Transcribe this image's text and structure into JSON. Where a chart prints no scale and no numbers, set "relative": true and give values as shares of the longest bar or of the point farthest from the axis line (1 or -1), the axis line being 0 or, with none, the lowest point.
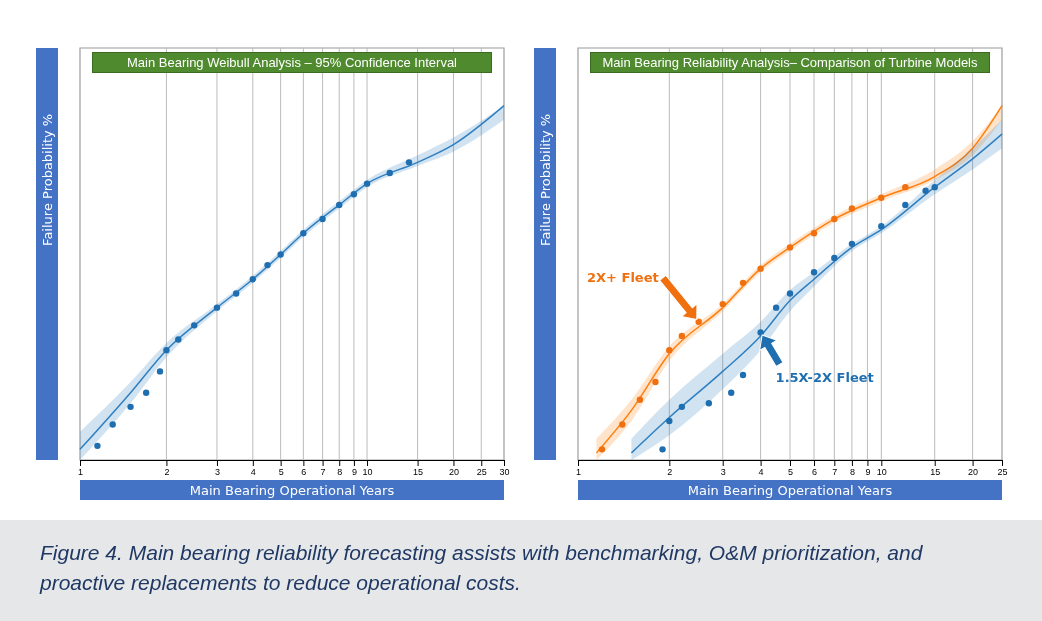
{
  "chart_data": [
    {
      "type": "line",
      "title": "Main Bearing Weibull Analysis – 95% Confidence Interval",
      "xlabel": "Main Bearing Operational Years",
      "ylabel": "Failure Probability %",
      "log": "x",
      "relative": true,
      "grid": "x",
      "tick_labels": "x",
      "legend": false,
      "xlim": [
        1,
        30
      ],
      "xticks": [
        1,
        2,
        3,
        4,
        5,
        6,
        7,
        8,
        9,
        10,
        15,
        20,
        25,
        30
      ],
      "annotations": [
        "Figure 4. Main bearing reliability forecasting assists with benchmarking, O&M prioritization, and proactive replacements to reduce operational costs."
      ],
      "series": [
        {
          "color": "#2f7fc0",
          "x": [
            1,
            1.5,
            2,
            3,
            4,
            5,
            6,
            8,
            10,
            15,
            20,
            30
          ],
          "values": [
            0.03,
            0.19,
            0.31,
            0.43,
            0.51,
            0.58,
            0.64,
            0.72,
            0.78,
            0.84,
            0.89,
            1.0
          ],
          "lower": [
            0,
            0.16,
            0.29,
            0.42,
            0.5,
            0.57,
            0.63,
            0.71,
            0.77,
            0.83,
            0.87,
            0.96
          ],
          "upper": [
            0.08,
            0.22,
            0.33,
            0.44,
            0.52,
            0.59,
            0.65,
            0.73,
            0.79,
            0.86,
            0.91,
            1.0
          ]
        },
        {
          "type": "scatter",
          "color": "#1f6fb0",
          "marker": "circle",
          "x": [
            1.15,
            1.3,
            1.5,
            1.7,
            1.9,
            2,
            2.2,
            2.5,
            3,
            3.5,
            4,
            4.5,
            5,
            6,
            7,
            8,
            9,
            10,
            12,
            14
          ],
          "values": [
            0.04,
            0.1,
            0.15,
            0.19,
            0.25,
            0.31,
            0.34,
            0.38,
            0.43,
            0.47,
            0.51,
            0.55,
            0.58,
            0.64,
            0.68,
            0.72,
            0.75,
            0.78,
            0.81,
            0.84
          ]
        }
      ]
    },
    {
      "type": "line",
      "title": "Main Bearing Reliability Analysis– Comparison of Turbine Models",
      "xlabel": "Main Bearing Operational Years",
      "ylabel": "Failure Probability %",
      "log": "x",
      "relative": true,
      "grid": "x",
      "tick_labels": "x",
      "legend": false,
      "xlim": [
        1,
        25
      ],
      "xticks": [
        1,
        2,
        3,
        4,
        5,
        6,
        7,
        8,
        9,
        10,
        15,
        20,
        25
      ],
      "series": [
        {
          "color": "#ff7f0e",
          "x": [
            1.15,
            1.5,
            2,
            3,
            4,
            5,
            7,
            10,
            15,
            20,
            25
          ],
          "values": [
            0.02,
            0.14,
            0.3,
            0.43,
            0.54,
            0.6,
            0.68,
            0.74,
            0.8,
            0.88,
            1.0
          ],
          "lower": [
            0,
            0.11,
            0.28,
            0.42,
            0.53,
            0.59,
            0.67,
            0.73,
            0.79,
            0.86,
            0.96
          ],
          "upper": [
            0.06,
            0.17,
            0.32,
            0.44,
            0.55,
            0.61,
            0.69,
            0.75,
            0.82,
            0.9,
            1.0
          ]
        },
        {
          "type": "scatter",
          "name": "2X+ Fleet",
          "color": "#f07010",
          "marker": "circle",
          "x": [
            1.2,
            1.4,
            1.6,
            1.8,
            2,
            2.2,
            2.5,
            3,
            3.5,
            4,
            5,
            6,
            7,
            8,
            10,
            12
          ],
          "values": [
            0.03,
            0.1,
            0.17,
            0.22,
            0.31,
            0.35,
            0.39,
            0.44,
            0.5,
            0.54,
            0.6,
            0.64,
            0.68,
            0.71,
            0.74,
            0.77
          ]
        },
        {
          "color": "#2f7fc0",
          "x": [
            1.5,
            2,
            3,
            4,
            5,
            6,
            8,
            10,
            15,
            20,
            25
          ],
          "values": [
            0.02,
            0.12,
            0.25,
            0.35,
            0.45,
            0.51,
            0.6,
            0.65,
            0.77,
            0.85,
            0.92
          ],
          "lower": [
            0,
            0.07,
            0.2,
            0.31,
            0.42,
            0.49,
            0.59,
            0.64,
            0.75,
            0.82,
            0.88
          ],
          "upper": [
            0.06,
            0.17,
            0.3,
            0.39,
            0.48,
            0.53,
            0.61,
            0.66,
            0.79,
            0.88,
            0.96
          ]
        },
        {
          "type": "scatter",
          "name": "1.5X-2X Fleet",
          "color": "#1f6fb0",
          "marker": "circle",
          "x": [
            1.9,
            2,
            2.2,
            2.7,
            3.2,
            3.5,
            4,
            4.5,
            5,
            6,
            7,
            8,
            10,
            12,
            14,
            15
          ],
          "values": [
            0.03,
            0.11,
            0.15,
            0.16,
            0.19,
            0.24,
            0.36,
            0.43,
            0.47,
            0.53,
            0.57,
            0.61,
            0.66,
            0.72,
            0.76,
            0.77
          ]
        }
      ]
    }
  ]
}
